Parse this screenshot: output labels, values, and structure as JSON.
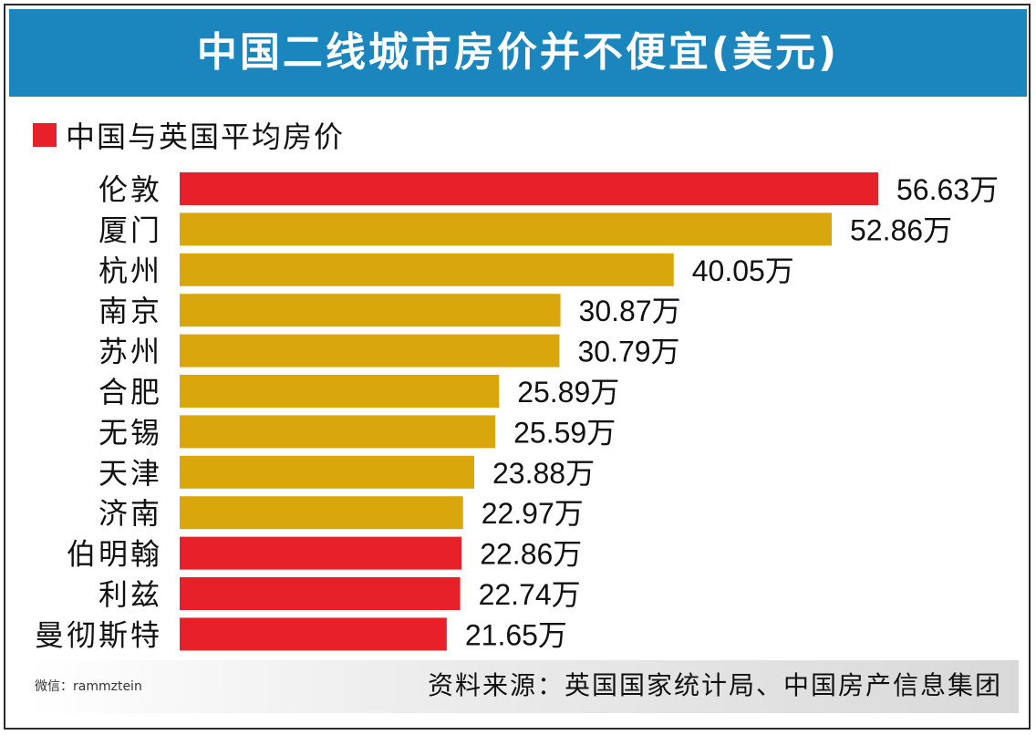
{
  "header": {
    "title": "中国二线城市房价并不便宜(美元)"
  },
  "legend": {
    "label": "中国与英国平均房价",
    "color": "#e8202a"
  },
  "footer": {
    "wechat": "微信：rammztein",
    "source": "资料来源：英国国家统计局、中国房产信息集团"
  },
  "colors": {
    "uk": "#e8202a",
    "china": "#d9a70b",
    "header_bg": "#1b86bd"
  },
  "chart_data": {
    "type": "bar",
    "orientation": "horizontal",
    "title": "中国二线城市房价并不便宜(美元)",
    "unit": "万",
    "categories": [
      "伦敦",
      "厦门",
      "杭州",
      "南京",
      "苏州",
      "合肥",
      "无锡",
      "天津",
      "济南",
      "伯明翰",
      "利兹",
      "曼彻斯特"
    ],
    "values": [
      56.63,
      52.86,
      40.05,
      30.87,
      30.79,
      25.89,
      25.59,
      23.88,
      22.97,
      22.86,
      22.74,
      21.65
    ],
    "value_labels": [
      "56.63万",
      "52.86万",
      "40.05万",
      "30.87万",
      "30.79万",
      "25.89万",
      "25.59万",
      "23.88万",
      "22.97万",
      "22.86万",
      "22.74万",
      "21.65万"
    ],
    "bar_colors": [
      "#e8202a",
      "#d9a70b",
      "#d9a70b",
      "#d9a70b",
      "#d9a70b",
      "#d9a70b",
      "#d9a70b",
      "#d9a70b",
      "#d9a70b",
      "#e8202a",
      "#e8202a",
      "#e8202a"
    ],
    "legend": [
      {
        "name": "中国与英国平均房价"
      }
    ],
    "grid": false
  }
}
